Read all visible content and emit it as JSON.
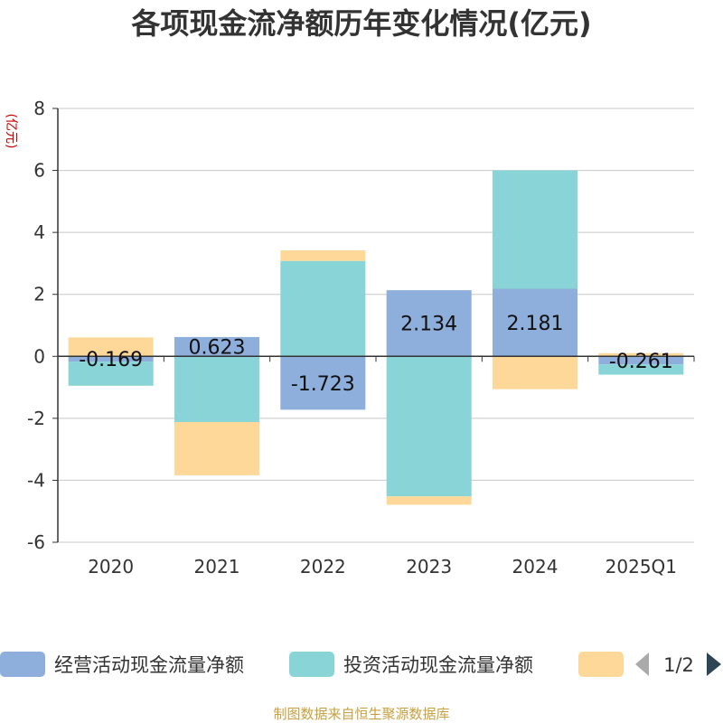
{
  "chart_data": {
    "type": "bar",
    "stacked": true,
    "title": "各项现金流净额历年变化情况(亿元)",
    "ylabel": "(亿元)",
    "xlabel": "",
    "ylim": [
      -6,
      8
    ],
    "yticks": [
      -6,
      -4,
      -2,
      0,
      2,
      4,
      6,
      8
    ],
    "grid": true,
    "categories": [
      "2020",
      "2021",
      "2022",
      "2023",
      "2024",
      "2025Q1"
    ],
    "series": [
      {
        "name": "经营活动现金流量净额",
        "color": "#8eaedb",
        "values": [
          -0.169,
          0.623,
          -1.723,
          2.134,
          2.181,
          -0.261
        ],
        "labels": [
          "-0.169",
          "0.623",
          "-1.723",
          "2.134",
          "2.181",
          "-0.261"
        ]
      },
      {
        "name": "投资活动现金流量净额",
        "color": "#88d4d6",
        "values": [
          -0.78,
          -2.12,
          3.08,
          -4.52,
          3.82,
          -0.33
        ]
      },
      {
        "name": "",
        "color": "#fdd898",
        "values": [
          0.61,
          -1.72,
          0.34,
          -0.27,
          -1.06,
          0.1
        ]
      }
    ],
    "legend": {
      "position": "bottom",
      "page": "1/2"
    },
    "source": "制图数据来自恒生聚源数据库"
  }
}
